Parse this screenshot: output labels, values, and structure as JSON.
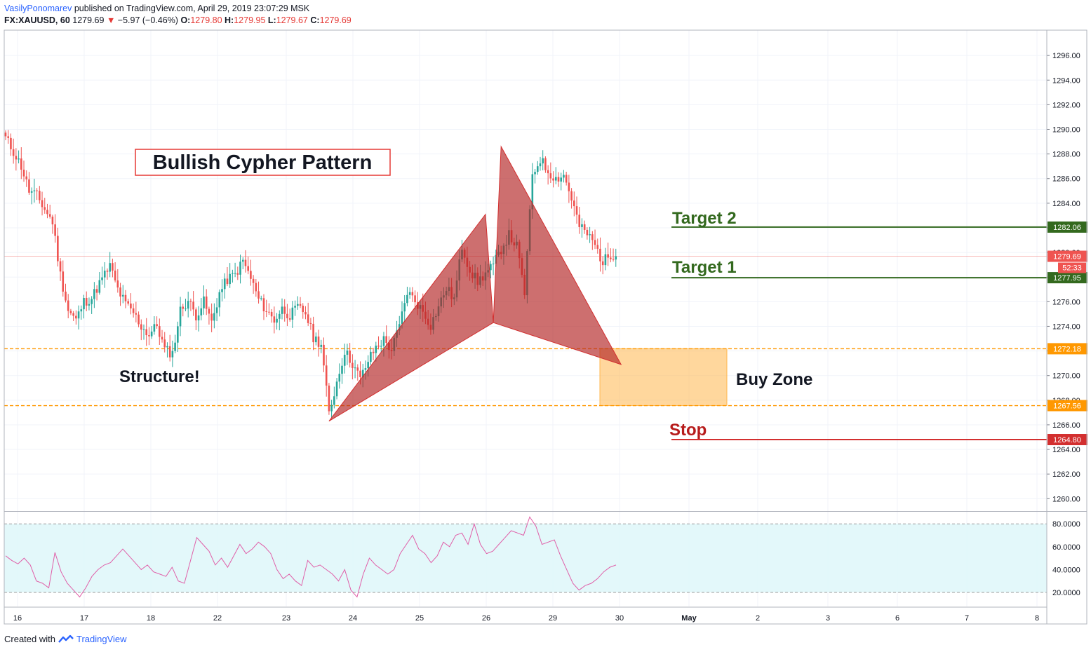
{
  "header": {
    "author": "VasilyPonomarev",
    "published": "published on TradingView.com, April 29, 2019 23:07:29 MSK",
    "symbol": "FX:XAUUSD, 60",
    "last": "1279.69",
    "change": "−5.97 (−0.46%)",
    "o_label": "O:",
    "o": "1279.80",
    "h_label": "H:",
    "h": "1279.95",
    "l_label": "L:",
    "l": "1279.67",
    "c_label": "C:",
    "c": "1279.69"
  },
  "footer": {
    "created_with": "Created with",
    "brand": "TradingView"
  },
  "colors": {
    "bull": "#26a69a",
    "bear": "#ef5350",
    "pattern": "#b22222",
    "target": "#33691e",
    "stop": "#c62828",
    "zone": "#ff9800",
    "rsi": "#e05fa8"
  },
  "chart_data": {
    "type": "candlestick",
    "symbol": "FX:XAUUSD",
    "interval": "60",
    "y_ticks": [
      1260,
      1262,
      1264,
      1266,
      1268,
      1270,
      1272,
      1274,
      1276,
      1278,
      1280,
      1282,
      1284,
      1286,
      1288,
      1290,
      1292,
      1294,
      1296
    ],
    "y_tick_labels": [
      "1260.00",
      "1262.00",
      "1264.00",
      "1266.00",
      "1268.00",
      "1270.00",
      "1272.00",
      "1274.00",
      "1276.00",
      "1278.00",
      "1280.00",
      "1282.00",
      "1284.00",
      "1286.00",
      "1288.00",
      "1290.00",
      "1292.00",
      "1294.00",
      "1296.00"
    ],
    "x_ticks": [
      "16",
      "17",
      "18",
      "22",
      "23",
      "24",
      "25",
      "26",
      "29",
      "30",
      "May",
      "2",
      "3",
      "6",
      "7",
      "8"
    ],
    "close_path": [
      [
        0,
        1289.3
      ],
      [
        3,
        1288.2
      ],
      [
        6,
        1287.0
      ],
      [
        9,
        1285.0
      ],
      [
        12,
        1284.6
      ],
      [
        15,
        1283.5
      ],
      [
        18,
        1282.5
      ],
      [
        21,
        1278.2
      ],
      [
        24,
        1275.3
      ],
      [
        27,
        1274.5
      ],
      [
        30,
        1276.0
      ],
      [
        33,
        1276.3
      ],
      [
        36,
        1277.5
      ],
      [
        40,
        1278.9
      ],
      [
        43,
        1277.0
      ],
      [
        46,
        1275.8
      ],
      [
        49,
        1275.1
      ],
      [
        52,
        1274.0
      ],
      [
        55,
        1273.3
      ],
      [
        58,
        1274.1
      ],
      [
        61,
        1272.1
      ],
      [
        64,
        1271.8
      ],
      [
        67,
        1275.3
      ],
      [
        70,
        1276.1
      ],
      [
        73,
        1274.9
      ],
      [
        76,
        1276.0
      ],
      [
        79,
        1274.3
      ],
      [
        82,
        1276.7
      ],
      [
        85,
        1277.8
      ],
      [
        88,
        1278.2
      ],
      [
        91,
        1279.3
      ],
      [
        94,
        1277.9
      ],
      [
        97,
        1276.2
      ],
      [
        100,
        1275.3
      ],
      [
        103,
        1274.5
      ],
      [
        106,
        1275.4
      ],
      [
        109,
        1274.9
      ],
      [
        112,
        1275.5
      ],
      [
        115,
        1275.1
      ],
      [
        118,
        1273.1
      ],
      [
        121,
        1272.6
      ],
      [
        124,
        1266.9
      ],
      [
        127,
        1269.5
      ],
      [
        130,
        1272.0
      ],
      [
        133,
        1271.0
      ],
      [
        136,
        1269.7
      ],
      [
        139,
        1271.2
      ],
      [
        142,
        1272.3
      ],
      [
        145,
        1272.9
      ],
      [
        148,
        1272.1
      ],
      [
        151,
        1274.0
      ],
      [
        154,
        1276.8
      ],
      [
        157,
        1276.1
      ],
      [
        160,
        1275.2
      ],
      [
        163,
        1274.1
      ],
      [
        166,
        1275.6
      ],
      [
        169,
        1277.1
      ],
      [
        172,
        1276.2
      ],
      [
        175,
        1280.5
      ],
      [
        178,
        1278.6
      ],
      [
        181,
        1277.6
      ],
      [
        184,
        1278.3
      ],
      [
        187,
        1278.9
      ],
      [
        190,
        1280.3
      ],
      [
        193,
        1281.4
      ],
      [
        196,
        1280.5
      ],
      [
        199,
        1276.7
      ],
      [
        202,
        1286.3
      ],
      [
        205,
        1287.6
      ],
      [
        208,
        1286.6
      ],
      [
        211,
        1286.0
      ],
      [
        214,
        1286.3
      ],
      [
        217,
        1284.4
      ],
      [
        220,
        1282.1
      ],
      [
        223,
        1281.5
      ],
      [
        226,
        1280.6
      ],
      [
        229,
        1279.2
      ],
      [
        232,
        1279.9
      ],
      [
        234,
        1279.69
      ]
    ],
    "last_price": "1279.69",
    "countdown": "52:33",
    "levels": [
      {
        "name": "Target 2",
        "label": "Target 2",
        "price": 1282.06,
        "price_label": "1282.06"
      },
      {
        "name": "Target 1",
        "label": "Target 1",
        "price": 1277.95,
        "price_label": "1277.95"
      },
      {
        "name": "buy-zone-top",
        "price": 1272.18,
        "price_label": "1272.18"
      },
      {
        "name": "buy-zone-bottom",
        "price": 1267.56,
        "price_label": "1267.56"
      },
      {
        "name": "Stop",
        "label": "Stop",
        "price": 1264.8,
        "price_label": "1264.80"
      }
    ],
    "pattern_points": [
      [
        124,
        1266.3
      ],
      [
        184,
        1283.1
      ],
      [
        187,
        1274.3
      ],
      [
        190,
        1288.6
      ],
      [
        236,
        1270.9
      ]
    ],
    "buy_zone": {
      "label": "Buy Zone",
      "top": 1272.18,
      "bottom": 1267.56
    },
    "annotations": {
      "title": "Bullish Cypher Pattern",
      "structure": "Structure!",
      "buy_zone": "Buy Zone",
      "target_1": "Target 1",
      "target_2": "Target 2",
      "stop": "Stop"
    },
    "rsi": {
      "y_ticks": [
        20,
        40,
        60,
        80
      ],
      "y_tick_labels": [
        "20.0000",
        "40.0000",
        "60.0000",
        "80.0000"
      ],
      "band": [
        20,
        80
      ],
      "values": [
        52,
        48,
        45,
        50,
        44,
        30,
        28,
        24,
        55,
        38,
        28,
        22,
        16,
        24,
        34,
        40,
        44,
        46,
        52,
        58,
        52,
        46,
        40,
        44,
        38,
        36,
        34,
        42,
        30,
        28,
        48,
        68,
        62,
        56,
        44,
        50,
        42,
        52,
        62,
        54,
        58,
        64,
        60,
        54,
        40,
        32,
        36,
        30,
        26,
        48,
        42,
        44,
        40,
        36,
        30,
        40,
        22,
        16,
        36,
        50,
        44,
        40,
        36,
        40,
        54,
        62,
        70,
        58,
        54,
        46,
        52,
        64,
        60,
        70,
        72,
        62,
        80,
        62,
        54,
        56,
        62,
        68,
        74,
        72,
        70,
        86,
        78,
        62,
        64,
        66,
        52,
        40,
        28,
        22,
        26,
        28,
        32,
        38,
        42,
        44
      ]
    }
  }
}
